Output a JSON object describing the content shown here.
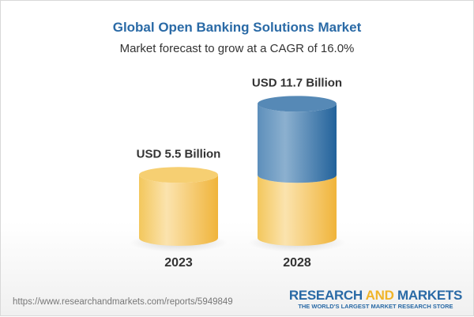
{
  "chart_data": {
    "type": "bar",
    "style": "3d-cylinder",
    "title": "Global Open Banking Solutions Market",
    "subtitle": "Market forecast to grow at a CAGR of 16.0%",
    "categories": [
      "2023",
      "2028"
    ],
    "values": [
      5.5,
      11.7
    ],
    "data_labels": [
      "USD 5.5 Billion",
      "USD 11.7 Billion"
    ],
    "unit": "USD Billion",
    "colors": {
      "base": "#f3c14f",
      "growth": "#3f7bb0",
      "title": "#2a6aa6"
    }
  },
  "footer": {
    "url": "https://www.researchandmarkets.com/reports/5949849",
    "logo_part1": "RESEARCH ",
    "logo_part2": "AND",
    "logo_part3": " MARKETS",
    "logo_tagline": "THE WORLD'S LARGEST MARKET RESEARCH STORE"
  }
}
